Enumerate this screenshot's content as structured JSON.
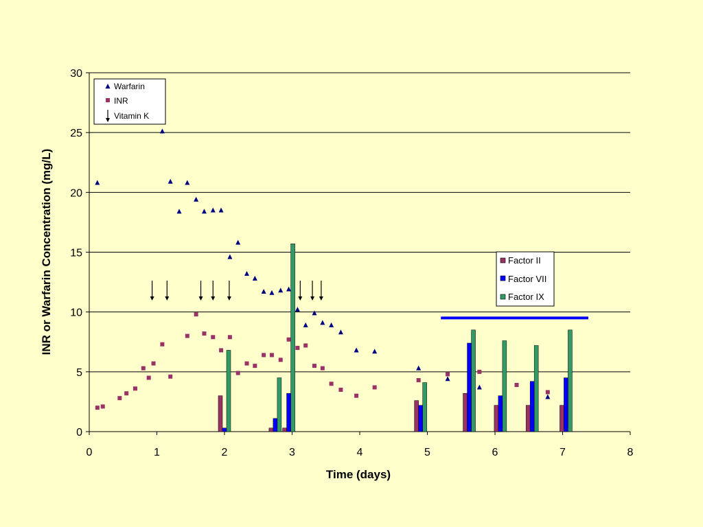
{
  "chart_data": {
    "type": "scatter",
    "xlabel": "Time (days)",
    "ylabel": "INR  or  Warfarin Concentration (mg/L)",
    "xlim": [
      0,
      8
    ],
    "ylim": [
      0,
      30
    ],
    "x_ticks": [
      0,
      1,
      2,
      3,
      4,
      5,
      6,
      7,
      8
    ],
    "y_ticks": [
      0,
      5,
      10,
      15,
      20,
      25,
      30
    ],
    "grid": "horizontal",
    "legend_points": {
      "placement": "top-left",
      "entries": [
        {
          "name": "Warfarin",
          "marker": "triangle",
          "color": "#000080"
        },
        {
          "name": "INR",
          "marker": "square",
          "color": "#993366"
        },
        {
          "name": "Vitamin K",
          "marker": "arrow",
          "color": "#000000"
        }
      ]
    },
    "legend_bars": {
      "placement": "right",
      "entries": [
        {
          "name": "Factor II",
          "color": "#993366"
        },
        {
          "name": "Factor VII",
          "color": "#0000ff"
        },
        {
          "name": "Factor IX",
          "color": "#339966"
        }
      ]
    },
    "warfarin": [
      [
        0.12,
        20.8
      ],
      [
        1.08,
        25.1
      ],
      [
        1.2,
        20.9
      ],
      [
        1.33,
        18.4
      ],
      [
        1.45,
        20.8
      ],
      [
        1.58,
        19.4
      ],
      [
        1.7,
        18.4
      ],
      [
        1.83,
        18.5
      ],
      [
        1.95,
        18.5
      ],
      [
        2.08,
        14.6
      ],
      [
        2.2,
        15.8
      ],
      [
        2.33,
        13.2
      ],
      [
        2.45,
        12.8
      ],
      [
        2.58,
        11.7
      ],
      [
        2.7,
        11.6
      ],
      [
        2.83,
        11.8
      ],
      [
        2.95,
        11.9
      ],
      [
        3.08,
        10.2
      ],
      [
        3.2,
        8.9
      ],
      [
        3.33,
        9.9
      ],
      [
        3.45,
        9.1
      ],
      [
        3.58,
        8.9
      ],
      [
        3.72,
        8.3
      ],
      [
        3.95,
        6.8
      ],
      [
        4.22,
        6.7
      ],
      [
        4.87,
        5.3
      ],
      [
        5.3,
        4.4
      ],
      [
        5.77,
        3.7
      ],
      [
        6.78,
        2.9
      ]
    ],
    "inr": [
      [
        0.12,
        2.0
      ],
      [
        0.2,
        2.1
      ],
      [
        0.45,
        2.8
      ],
      [
        0.55,
        3.2
      ],
      [
        0.68,
        3.6
      ],
      [
        0.8,
        5.3
      ],
      [
        0.88,
        4.5
      ],
      [
        0.95,
        5.7
      ],
      [
        1.08,
        7.3
      ],
      [
        1.2,
        4.6
      ],
      [
        1.45,
        8.0
      ],
      [
        1.58,
        9.8
      ],
      [
        1.7,
        8.2
      ],
      [
        1.83,
        7.9
      ],
      [
        1.95,
        6.8
      ],
      [
        2.08,
        7.9
      ],
      [
        2.2,
        4.9
      ],
      [
        2.33,
        5.7
      ],
      [
        2.45,
        5.5
      ],
      [
        2.58,
        6.4
      ],
      [
        2.7,
        6.4
      ],
      [
        2.83,
        6.0
      ],
      [
        2.95,
        7.7
      ],
      [
        3.08,
        7.0
      ],
      [
        3.2,
        7.2
      ],
      [
        3.33,
        5.5
      ],
      [
        3.45,
        5.3
      ],
      [
        3.58,
        4.0
      ],
      [
        3.72,
        3.5
      ],
      [
        3.95,
        3.0
      ],
      [
        4.22,
        3.7
      ],
      [
        4.87,
        4.3
      ],
      [
        5.3,
        4.8
      ],
      [
        5.77,
        5.0
      ],
      [
        6.32,
        3.9
      ],
      [
        6.78,
        3.3
      ]
    ],
    "vitamin_k_times": [
      0.93,
      1.15,
      1.65,
      1.83,
      2.07,
      3.12,
      3.3,
      3.43
    ],
    "factor_groups": [
      {
        "x": 2.0,
        "factor_ii": 3.0,
        "factor_vii": 0.3,
        "factor_ix": 6.8
      },
      {
        "x": 2.75,
        "factor_ii": 0.3,
        "factor_vii": 1.1,
        "factor_ix": 4.5
      },
      {
        "x": 2.95,
        "factor_ii": 0.3,
        "factor_vii": 3.2,
        "factor_ix": 15.7
      },
      {
        "x": 4.9,
        "factor_ii": 2.6,
        "factor_vii": 2.2,
        "factor_ix": 4.1
      },
      {
        "x": 5.62,
        "factor_ii": 3.2,
        "factor_vii": 7.4,
        "factor_ix": 8.5
      },
      {
        "x": 6.08,
        "factor_ii": 2.2,
        "factor_vii": 3.0,
        "factor_ix": 7.6
      },
      {
        "x": 6.55,
        "factor_ii": 2.2,
        "factor_vii": 4.2,
        "factor_ix": 7.2
      },
      {
        "x": 7.05,
        "factor_ii": 2.2,
        "factor_vii": 4.5,
        "factor_ix": 8.5
      }
    ],
    "blue_line": {
      "x_start": 5.2,
      "x_end": 7.38,
      "y": 9.5,
      "color": "#0000ff"
    }
  }
}
